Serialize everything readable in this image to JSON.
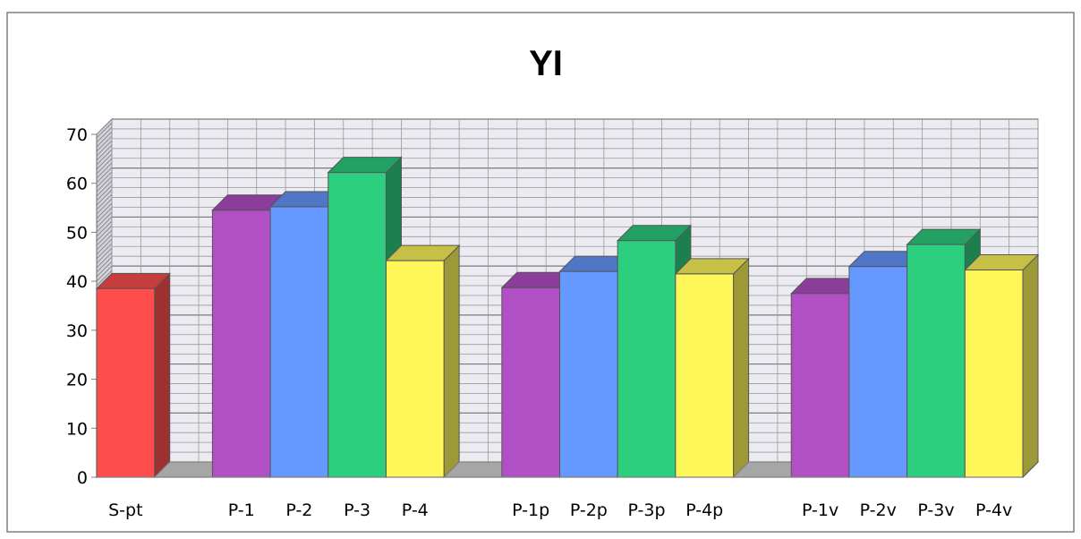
{
  "chart_data": {
    "type": "bar",
    "title": "YI",
    "xlabel": "",
    "ylabel": "",
    "ylim": [
      0,
      70
    ],
    "y_ticks": [
      0,
      10,
      20,
      30,
      40,
      50,
      60,
      70
    ],
    "grid": true,
    "three_d": true,
    "legend": "none",
    "categories": [
      "S-pt",
      "",
      "P-1",
      "P-2",
      "P-3",
      "P-4",
      "",
      "P-1p",
      "P-2p",
      "P-3p",
      "P-4p",
      "",
      "P-1v",
      "P-2v",
      "P-3v",
      "P-4v"
    ],
    "values": [
      38.5,
      0,
      54.5,
      55.2,
      62.2,
      44.2,
      0,
      38.7,
      42.0,
      48.3,
      41.5,
      0,
      37.5,
      43.0,
      47.5,
      42.3
    ],
    "colors": {
      "S-pt": "#ff4d4d",
      "P-1": "#b14fc5",
      "P-2": "#6699ff",
      "P-3": "#2bcf7e",
      "P-4": "#fff65a",
      "P-1p": "#b14fc5",
      "P-2p": "#6699ff",
      "P-3p": "#2bcf7e",
      "P-4p": "#fff65a",
      "P-1v": "#b14fc5",
      "P-2v": "#6699ff",
      "P-3v": "#2bcf7e",
      "P-4v": "#fff65a",
      "empty": "#a6a6a6"
    }
  }
}
